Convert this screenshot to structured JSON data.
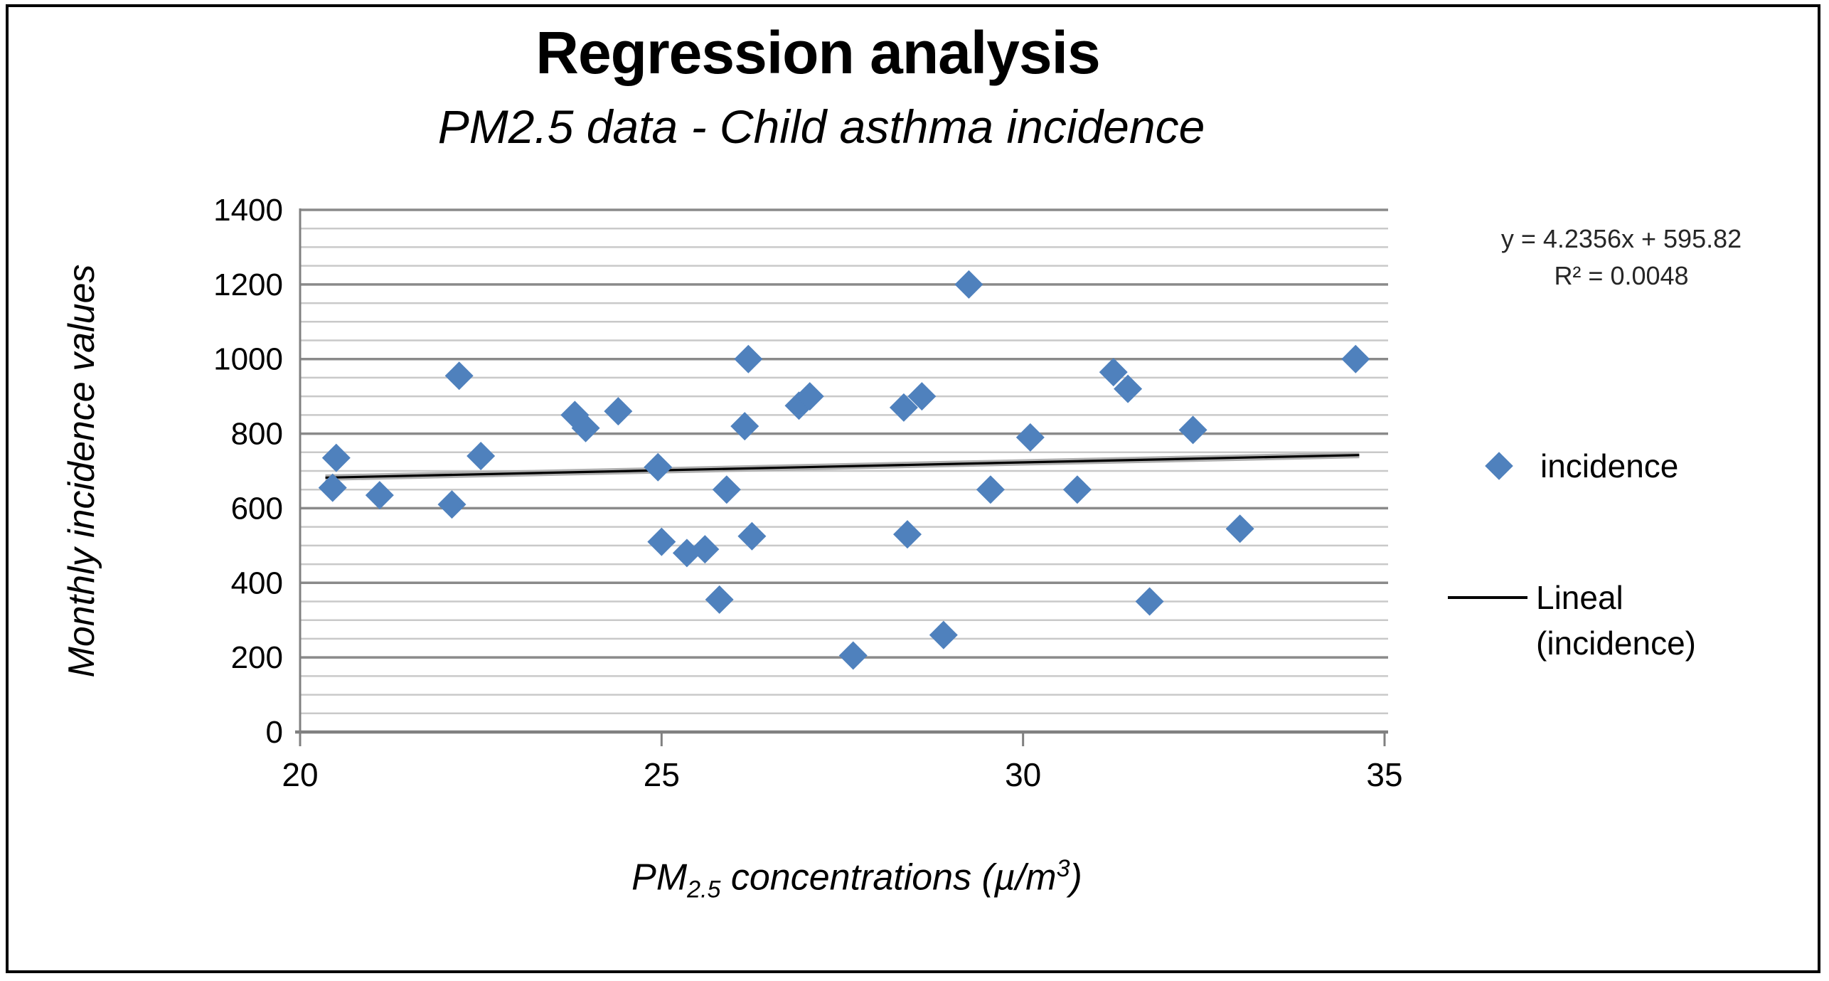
{
  "chart_data": {
    "type": "scatter",
    "title": "Regression analysis",
    "subtitle": "PM2.5 data - Child asthma incidence",
    "ylabel": "Monthly incidence values",
    "xlabel": "PM2.5 concentrations (µ/m³)",
    "xlabel_parts": {
      "prefix": "PM",
      "sub": "2.5",
      "mid": " concentrations (µ/m",
      "sup": "3",
      "suffix": ")"
    },
    "xlim": [
      20,
      35
    ],
    "ylim": [
      0,
      1400
    ],
    "x_ticks": [
      20,
      25,
      30,
      35
    ],
    "y_ticks": [
      0,
      200,
      400,
      600,
      800,
      1000,
      1200,
      1400
    ],
    "y_minor_step": 50,
    "y_major_step": 200,
    "grid": "horizontal",
    "colors": {
      "marker": "#4F81BD",
      "trendline": "#000000",
      "trendline_halo": "#b0b0b0",
      "minor_grid": "#c9c9c9",
      "major_grid": "#8a8a8a",
      "axis": "#808080",
      "text": "#000000"
    },
    "series": [
      {
        "name": "incidence",
        "marker": "diamond",
        "points": [
          [
            20.45,
            655
          ],
          [
            20.5,
            735
          ],
          [
            21.1,
            635
          ],
          [
            22.1,
            610
          ],
          [
            22.2,
            955
          ],
          [
            22.5,
            740
          ],
          [
            23.8,
            850
          ],
          [
            23.95,
            815
          ],
          [
            24.4,
            860
          ],
          [
            24.95,
            710
          ],
          [
            25.0,
            510
          ],
          [
            25.35,
            480
          ],
          [
            25.6,
            490
          ],
          [
            25.8,
            355
          ],
          [
            25.9,
            650
          ],
          [
            26.15,
            820
          ],
          [
            26.2,
            1000
          ],
          [
            26.25,
            525
          ],
          [
            26.9,
            875
          ],
          [
            27.05,
            900
          ],
          [
            27.65,
            205
          ],
          [
            28.35,
            870
          ],
          [
            28.4,
            530
          ],
          [
            28.6,
            900
          ],
          [
            28.9,
            260
          ],
          [
            29.25,
            1200
          ],
          [
            29.55,
            650
          ],
          [
            30.1,
            790
          ],
          [
            30.75,
            650
          ],
          [
            31.25,
            965
          ],
          [
            31.45,
            920
          ],
          [
            31.75,
            350
          ],
          [
            32.35,
            810
          ],
          [
            33.0,
            545
          ],
          [
            34.6,
            1000
          ]
        ]
      }
    ],
    "trendline": {
      "name": "Lineal (incidence)",
      "slope": 4.2356,
      "intercept": 595.82,
      "r_squared": 0.0048,
      "x_start": 20.35,
      "x_end": 34.65
    },
    "annotations": [
      "y = 4.2356x + 595.82",
      "R² = 0.0048"
    ],
    "legend": {
      "position": "right",
      "items": [
        {
          "label": "incidence",
          "marker": "diamond"
        },
        {
          "label_lines": [
            "Lineal",
            "(incidence)"
          ],
          "marker": "line"
        }
      ]
    }
  }
}
